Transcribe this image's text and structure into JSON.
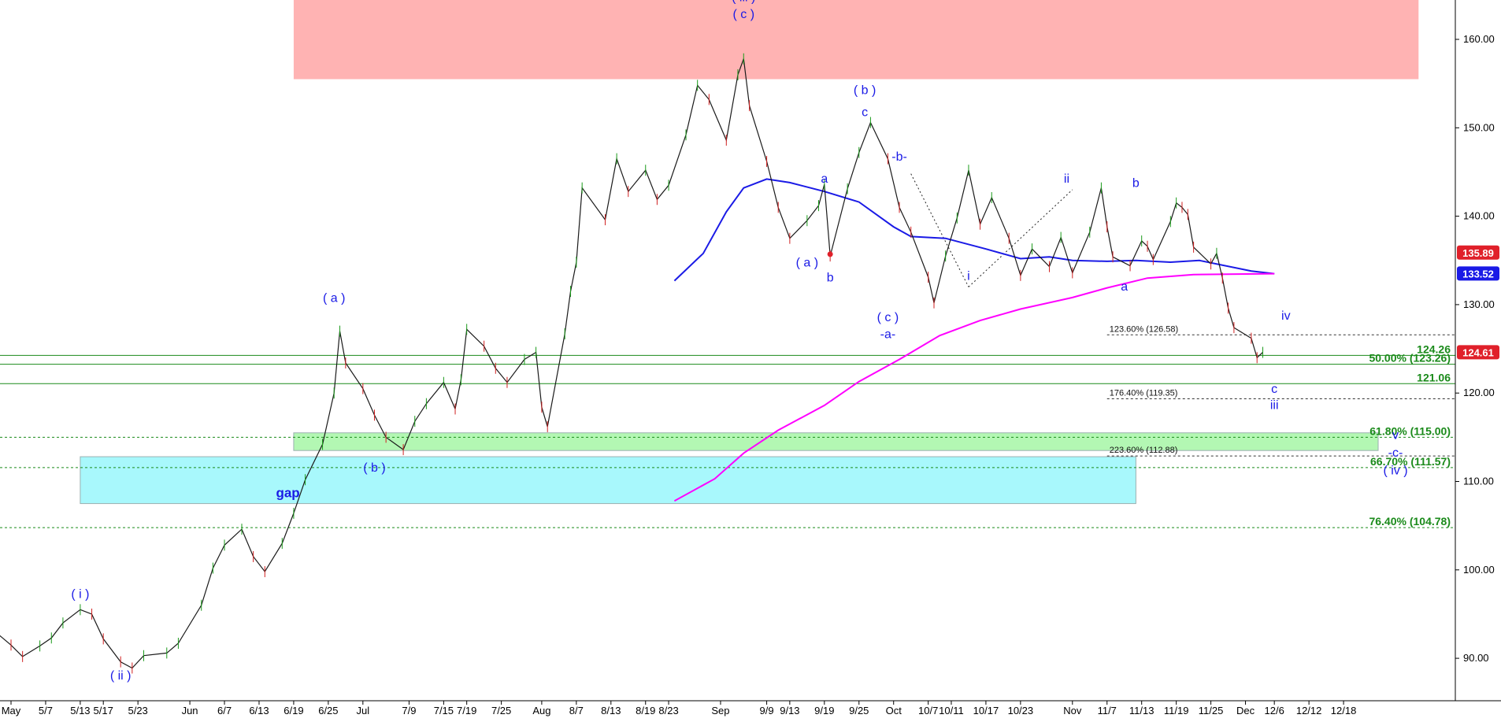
{
  "chart_data": {
    "type": "line",
    "title": "",
    "xlabel": "",
    "ylabel": "",
    "ylim": [
      86.5,
      165
    ],
    "grid": false,
    "price_scale": "right",
    "x_dates": [
      "2024-05-01",
      "2024-05-07",
      "2024-05-13",
      "2024-05-17",
      "2024-05-23",
      "2024-06-01",
      "2024-06-07",
      "2024-06-13",
      "2024-06-19",
      "2024-06-25",
      "2024-07-01",
      "2024-07-09",
      "2024-07-15",
      "2024-07-19",
      "2024-07-25",
      "2024-08-01",
      "2024-08-07",
      "2024-08-13",
      "2024-08-19",
      "2024-08-23",
      "2024-09-01",
      "2024-09-09",
      "2024-09-13",
      "2024-09-19",
      "2024-09-25",
      "2024-10-01",
      "2024-10-07",
      "2024-10-11",
      "2024-10-17",
      "2024-10-23",
      "2024-11-01",
      "2024-11-07",
      "2024-11-13",
      "2024-11-19",
      "2024-11-25",
      "2024-12-01",
      "2024-12-06",
      "2024-12-12",
      "2024-12-18"
    ],
    "x_tick_labels": [
      "May",
      "5/7",
      "5/13",
      "5/17",
      "5/23",
      "Jun",
      "6/7",
      "6/13",
      "6/19",
      "6/25",
      "Jul",
      "7/9",
      "7/15",
      "7/19",
      "7/25",
      "Aug",
      "8/7",
      "8/13",
      "8/19",
      "8/23",
      "Sep",
      "9/9",
      "9/13",
      "9/19",
      "9/25",
      "Oct",
      "10/7",
      "10/11",
      "10/17",
      "10/23",
      "Nov",
      "11/7",
      "11/13",
      "11/19",
      "11/25",
      "Dec",
      "12/6",
      "12/12",
      "12/18"
    ],
    "y_ticks": [
      90,
      100,
      110,
      120,
      130,
      140,
      150,
      160
    ],
    "y_tick_labels": [
      "90.00",
      "100.00",
      "110.00",
      "120.00",
      "130.00",
      "140.00",
      "150.00",
      "160.00"
    ],
    "price_series": {
      "name": "",
      "color": "#1a1a1a",
      "points": [
        [
          "2024-04-29",
          92.6
        ],
        [
          "2024-05-01",
          91.5
        ],
        [
          "2024-05-03",
          90.2
        ],
        [
          "2024-05-06",
          91.4
        ],
        [
          "2024-05-08",
          92.3
        ],
        [
          "2024-05-10",
          94.0
        ],
        [
          "2024-05-13",
          95.5
        ],
        [
          "2024-05-15",
          95.0
        ],
        [
          "2024-05-17",
          92.2
        ],
        [
          "2024-05-20",
          89.6
        ],
        [
          "2024-05-22",
          88.9
        ],
        [
          "2024-05-24",
          90.3
        ],
        [
          "2024-05-28",
          90.6
        ],
        [
          "2024-05-30",
          91.7
        ],
        [
          "2024-06-03",
          96.0
        ],
        [
          "2024-06-05",
          100.2
        ],
        [
          "2024-06-07",
          102.8
        ],
        [
          "2024-06-10",
          104.6
        ],
        [
          "2024-06-12",
          101.5
        ],
        [
          "2024-06-14",
          99.8
        ],
        [
          "2024-06-17",
          103.0
        ],
        [
          "2024-06-19",
          106.4
        ],
        [
          "2024-06-21",
          110.2
        ],
        [
          "2024-06-24",
          114.2
        ],
        [
          "2024-06-26",
          120.0
        ],
        [
          "2024-06-27",
          127.0
        ],
        [
          "2024-06-28",
          123.4
        ],
        [
          "2024-07-01",
          120.5
        ],
        [
          "2024-07-03",
          117.5
        ],
        [
          "2024-07-05",
          115.0
        ],
        [
          "2024-07-08",
          113.6
        ],
        [
          "2024-07-10",
          116.8
        ],
        [
          "2024-07-12",
          118.8
        ],
        [
          "2024-07-15",
          121.2
        ],
        [
          "2024-07-17",
          118.2
        ],
        [
          "2024-07-18",
          121.5
        ],
        [
          "2024-07-19",
          127.2
        ],
        [
          "2024-07-22",
          125.3
        ],
        [
          "2024-07-24",
          122.8
        ],
        [
          "2024-07-26",
          121.2
        ],
        [
          "2024-07-29",
          123.8
        ],
        [
          "2024-07-31",
          124.6
        ],
        [
          "2024-08-01",
          118.4
        ],
        [
          "2024-08-02",
          116.2
        ],
        [
          "2024-08-05",
          126.7
        ],
        [
          "2024-08-06",
          131.5
        ],
        [
          "2024-08-07",
          134.8
        ],
        [
          "2024-08-08",
          143.2
        ],
        [
          "2024-08-12",
          139.6
        ],
        [
          "2024-08-14",
          146.5
        ],
        [
          "2024-08-16",
          142.8
        ],
        [
          "2024-08-19",
          145.2
        ],
        [
          "2024-08-21",
          141.9
        ],
        [
          "2024-08-23",
          143.5
        ],
        [
          "2024-08-26",
          149.2
        ],
        [
          "2024-08-28",
          154.8
        ],
        [
          "2024-08-30",
          153.2
        ],
        [
          "2024-09-02",
          148.6
        ],
        [
          "2024-09-04",
          156.0
        ],
        [
          "2024-09-05",
          157.8
        ],
        [
          "2024-09-06",
          152.5
        ],
        [
          "2024-09-09",
          146.2
        ],
        [
          "2024-09-11",
          141.0
        ],
        [
          "2024-09-13",
          137.5
        ],
        [
          "2024-09-16",
          139.5
        ],
        [
          "2024-09-18",
          141.2
        ],
        [
          "2024-09-19",
          143.6
        ],
        [
          "2024-09-20",
          135.5
        ],
        [
          "2024-09-23",
          143.1
        ],
        [
          "2024-09-25",
          147.2
        ],
        [
          "2024-09-27",
          150.6
        ],
        [
          "2024-09-30",
          146.5
        ],
        [
          "2024-10-02",
          141.0
        ],
        [
          "2024-10-04",
          138.2
        ],
        [
          "2024-10-07",
          133.1
        ],
        [
          "2024-10-08",
          130.2
        ],
        [
          "2024-10-10",
          135.5
        ],
        [
          "2024-10-12",
          139.8
        ],
        [
          "2024-10-14",
          145.2
        ],
        [
          "2024-10-16",
          139.1
        ],
        [
          "2024-10-18",
          142.1
        ],
        [
          "2024-10-21",
          137.5
        ],
        [
          "2024-10-23",
          133.3
        ],
        [
          "2024-10-25",
          136.3
        ],
        [
          "2024-10-28",
          134.3
        ],
        [
          "2024-10-30",
          137.6
        ],
        [
          "2024-11-01",
          133.6
        ],
        [
          "2024-11-04",
          138.2
        ],
        [
          "2024-11-06",
          143.2
        ],
        [
          "2024-11-07",
          138.8
        ],
        [
          "2024-11-08",
          135.4
        ],
        [
          "2024-11-11",
          134.4
        ],
        [
          "2024-11-13",
          137.2
        ],
        [
          "2024-11-14",
          136.6
        ],
        [
          "2024-11-15",
          135.1
        ],
        [
          "2024-11-18",
          139.4
        ],
        [
          "2024-11-19",
          141.5
        ],
        [
          "2024-11-20",
          141.0
        ],
        [
          "2024-11-21",
          140.2
        ],
        [
          "2024-11-22",
          136.5
        ],
        [
          "2024-11-25",
          134.6
        ],
        [
          "2024-11-26",
          135.8
        ],
        [
          "2024-11-27",
          133.0
        ],
        [
          "2024-11-28",
          129.6
        ],
        [
          "2024-11-29",
          127.4
        ],
        [
          "2024-12-02",
          126.2
        ],
        [
          "2024-12-03",
          124.0
        ],
        [
          "2024-12-04",
          124.6
        ]
      ]
    },
    "moving_averages": [
      {
        "name": "",
        "color": "#1a1ae6",
        "points": [
          [
            "2024-08-24",
            132.7
          ],
          [
            "2024-08-29",
            135.8
          ],
          [
            "2024-09-02",
            140.5
          ],
          [
            "2024-09-05",
            143.2
          ],
          [
            "2024-09-09",
            144.2
          ],
          [
            "2024-09-13",
            143.8
          ],
          [
            "2024-09-19",
            142.8
          ],
          [
            "2024-09-25",
            141.6
          ],
          [
            "2024-10-01",
            138.8
          ],
          [
            "2024-10-04",
            137.7
          ],
          [
            "2024-10-10",
            137.5
          ],
          [
            "2024-10-17",
            136.3
          ],
          [
            "2024-10-23",
            135.2
          ],
          [
            "2024-10-28",
            135.4
          ],
          [
            "2024-11-01",
            135.0
          ],
          [
            "2024-11-07",
            134.9
          ],
          [
            "2024-11-12",
            135.0
          ],
          [
            "2024-11-18",
            134.8
          ],
          [
            "2024-11-23",
            135.0
          ],
          [
            "2024-12-02",
            133.8
          ],
          [
            "2024-12-06",
            133.5
          ]
        ]
      },
      {
        "name": "",
        "color": "#ff00ff",
        "points": [
          [
            "2024-08-24",
            107.8
          ],
          [
            "2024-08-31",
            110.3
          ],
          [
            "2024-09-05",
            113.2
          ],
          [
            "2024-09-11",
            115.8
          ],
          [
            "2024-09-19",
            118.6
          ],
          [
            "2024-09-25",
            121.3
          ],
          [
            "2024-10-02",
            123.8
          ],
          [
            "2024-10-09",
            126.5
          ],
          [
            "2024-10-16",
            128.2
          ],
          [
            "2024-10-23",
            129.5
          ],
          [
            "2024-11-01",
            130.8
          ],
          [
            "2024-11-07",
            131.9
          ],
          [
            "2024-11-14",
            133.0
          ],
          [
            "2024-11-22",
            133.4
          ],
          [
            "2024-12-06",
            133.5
          ]
        ]
      }
    ],
    "zones": [
      {
        "kind": "resistance",
        "color": "#ffb3b3",
        "x_from": "2024-06-19",
        "x_to": "2024-12-31",
        "y_from": 155.5,
        "y_to": 165
      },
      {
        "kind": "gap",
        "color": "#a8f8fc",
        "x_from": "2024-05-13",
        "x_to": "2024-11-12",
        "y_from": 107.5,
        "y_to": 112.8
      },
      {
        "kind": "support",
        "color": "#b3f7b3",
        "x_from": "2024-06-19",
        "x_to": "2024-12-24",
        "y_from": 113.5,
        "y_to": 115.5
      }
    ],
    "levels": [
      {
        "y": 124.26,
        "style": "solid",
        "color": "#1a8a1a",
        "label": "124.26",
        "label_color": "#1a8a1a"
      },
      {
        "y": 123.26,
        "style": "solid",
        "color": "#1a8a1a",
        "label": "50.00% (123.26)",
        "label_color": "#1a8a1a"
      },
      {
        "y": 121.06,
        "style": "solid",
        "color": "#1a8a1a",
        "label": "121.06",
        "label_color": "#1a8a1a"
      },
      {
        "y": 115.0,
        "style": "dashed",
        "color": "#1a8a1a",
        "label": "61.80% (115.00)",
        "label_color": "#1a8a1a"
      },
      {
        "y": 111.57,
        "style": "dashed",
        "color": "#1a8a1a",
        "label": "66.70% (111.57)",
        "label_color": "#1a8a1a"
      },
      {
        "y": 104.78,
        "style": "dashed",
        "color": "#1a8a1a",
        "label": "76.40% (104.78)",
        "label_color": "#1a8a1a"
      }
    ],
    "projections": [
      {
        "y": 126.58,
        "x_from": "2024-11-07",
        "x_to": "2024-12-31",
        "label": "123.60% (126.58)"
      },
      {
        "y": 119.35,
        "x_from": "2024-11-07",
        "x_to": "2024-12-31",
        "label": "176.40% (119.35)"
      },
      {
        "y": 112.88,
        "x_from": "2024-11-07",
        "x_to": "2024-12-31",
        "label": "223.60% (112.88)"
      }
    ],
    "right_axis_tags": [
      {
        "y": 135.89,
        "label": "135.89",
        "color": "#e0202a"
      },
      {
        "y": 133.52,
        "label": "133.52",
        "color": "#1a1ae6"
      },
      {
        "y": 124.61,
        "label": "124.61",
        "color": "#e0202a"
      }
    ],
    "wave_labels": [
      {
        "x": "2024-05-13",
        "y": 96.8,
        "text": "( i )"
      },
      {
        "x": "2024-05-20",
        "y": 87.6,
        "text": "( ii )"
      },
      {
        "x": "2024-06-26",
        "y": 130.3,
        "text": "( a )"
      },
      {
        "x": "2024-06-18",
        "y": 108.2,
        "text": "gap"
      },
      {
        "x": "2024-07-03",
        "y": 111.1,
        "text": "( b )"
      },
      {
        "x": "2024-09-05",
        "y": 164.3,
        "text": "( iii )"
      },
      {
        "x": "2024-09-05",
        "y": 162.4,
        "text": "( c )"
      },
      {
        "x": "2024-09-16",
        "y": 134.3,
        "text": "( a )"
      },
      {
        "x": "2024-09-19",
        "y": 143.8,
        "text": "a"
      },
      {
        "x": "2024-09-20",
        "y": 132.6,
        "text": "b"
      },
      {
        "x": "2024-09-26",
        "y": 153.8,
        "text": "( b )"
      },
      {
        "x": "2024-09-26",
        "y": 151.3,
        "text": "c"
      },
      {
        "x": "2024-10-02",
        "y": 146.3,
        "text": "-b-"
      },
      {
        "x": "2024-09-30",
        "y": 128.1,
        "text": "( c )"
      },
      {
        "x": "2024-09-30",
        "y": 126.2,
        "text": "-a-"
      },
      {
        "x": "2024-10-14",
        "y": 132.8,
        "text": "i"
      },
      {
        "x": "2024-10-31",
        "y": 143.8,
        "text": "ii"
      },
      {
        "x": "2024-11-12",
        "y": 143.3,
        "text": "b"
      },
      {
        "x": "2024-11-10",
        "y": 131.6,
        "text": "a"
      },
      {
        "x": "2024-12-08",
        "y": 128.3,
        "text": "iv"
      },
      {
        "x": "2024-12-06",
        "y": 120.0,
        "text": "c"
      },
      {
        "x": "2024-12-06",
        "y": 118.2,
        "text": "iii"
      },
      {
        "x": "2024-12-27",
        "y": 114.8,
        "text": "v"
      },
      {
        "x": "2024-12-27",
        "y": 112.8,
        "text": "-c-"
      },
      {
        "x": "2024-12-27",
        "y": 110.8,
        "text": "( iv )"
      }
    ],
    "channel_lines": [
      {
        "from": [
          "2024-10-04",
          144.8
        ],
        "to": [
          "2024-10-14",
          132.0
        ],
        "style": "dotted"
      },
      {
        "from": [
          "2024-10-14",
          132.0
        ],
        "to": [
          "2024-11-01",
          143.0
        ],
        "style": "dotted"
      }
    ],
    "marker": {
      "x": "2024-09-20",
      "y": 135.7,
      "color": "#e0202a"
    }
  }
}
